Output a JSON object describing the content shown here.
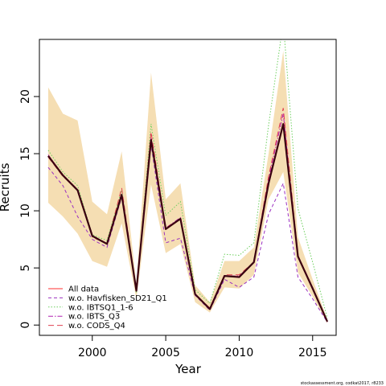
{
  "chart_data": {
    "type": "line",
    "title": "",
    "xlabel": "Year",
    "ylabel": "Recruits",
    "xlim": [
      1996.4,
      2016.6
    ],
    "ylim": [
      -0.9,
      25
    ],
    "x_ticks": [
      2000,
      2005,
      2010,
      2015
    ],
    "y_ticks": [
      0,
      5,
      10,
      15,
      20
    ],
    "x": [
      1997,
      1998,
      1999,
      2000,
      2001,
      2002,
      2003,
      2004,
      2005,
      2006,
      2007,
      2008,
      2009,
      2010,
      2011,
      2012,
      2013,
      2014,
      2015,
      2016
    ],
    "band": {
      "color": "#f5deb3",
      "upper": [
        20.8,
        18.5,
        17.9,
        10.8,
        9.7,
        15.2,
        3.6,
        22.1,
        11.0,
        12.4,
        3.5,
        2.0,
        5.6,
        5.6,
        6.8,
        15.0,
        24.0,
        7.7,
        4.0,
        0.5
      ],
      "lower": [
        10.7,
        9.5,
        8.0,
        5.6,
        5.1,
        8.9,
        2.3,
        12.3,
        6.3,
        7.1,
        2.0,
        1.1,
        3.3,
        3.2,
        4.4,
        11.0,
        13.4,
        4.6,
        2.5,
        0.15
      ]
    },
    "series": [
      {
        "name": "All data",
        "color": "#ff3030",
        "dash": "",
        "values": [
          14.8,
          13.1,
          11.8,
          7.8,
          7.1,
          11.4,
          3.0,
          16.2,
          8.4,
          9.3,
          2.7,
          1.4,
          4.3,
          4.2,
          5.5,
          12.4,
          17.6,
          6.0,
          3.2,
          0.3
        ]
      },
      {
        "name": "w.o. Havfisken_SD21_Q1",
        "color": "#9b30c0",
        "dash": "4,3",
        "values": [
          13.8,
          12.2,
          9.5,
          7.5,
          6.8,
          11.2,
          3.0,
          15.8,
          7.2,
          7.6,
          2.6,
          1.3,
          4.0,
          3.3,
          4.2,
          9.7,
          12.4,
          4.2,
          2.3,
          0.25
        ]
      },
      {
        "name": "w.o. IBTSQ1_1-6",
        "color": "#6fd060",
        "dash": "1.5,2",
        "values": [
          15.3,
          13.4,
          12.2,
          7.9,
          7.4,
          11.8,
          2.8,
          17.6,
          9.6,
          10.8,
          3.1,
          1.9,
          6.2,
          6.1,
          7.2,
          17.5,
          26.5,
          10.2,
          5.5,
          0.6
        ]
      },
      {
        "name": "w.o. IBTS_Q3",
        "color": "#b020b0",
        "dash": "6,2,1.5,2",
        "values": [
          14.9,
          13.1,
          11.8,
          7.8,
          7.1,
          11.5,
          3.0,
          16.4,
          8.5,
          9.4,
          2.7,
          1.4,
          4.3,
          4.3,
          5.5,
          12.8,
          18.5,
          6.1,
          3.2,
          0.3
        ]
      },
      {
        "name": "w.o. CODS_Q4",
        "color": "#e04050",
        "dash": "7,4",
        "values": [
          14.7,
          13.0,
          11.9,
          7.7,
          7.1,
          12.0,
          3.0,
          16.9,
          8.5,
          9.3,
          2.7,
          1.5,
          4.4,
          4.4,
          5.5,
          13.0,
          19.0,
          6.1,
          3.3,
          0.3
        ]
      }
    ],
    "main_line": {
      "color": "#3a0010",
      "values": [
        14.8,
        13.1,
        11.8,
        7.8,
        7.1,
        11.4,
        3.0,
        16.2,
        8.4,
        9.3,
        2.7,
        1.4,
        4.3,
        4.2,
        5.5,
        12.4,
        17.6,
        6.0,
        3.2,
        0.3
      ]
    },
    "legend_position": "bottom-left",
    "credit": "stockassessment.org, codkat2017, r8233"
  }
}
